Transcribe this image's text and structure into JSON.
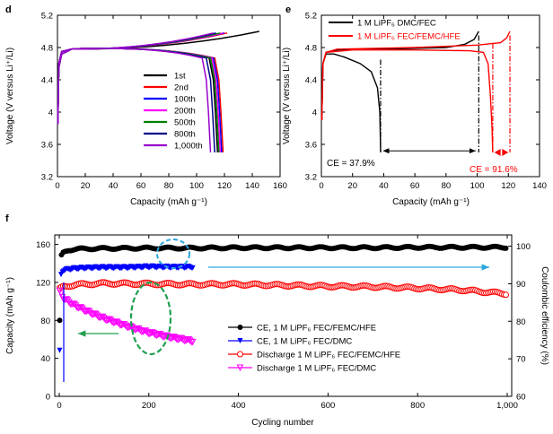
{
  "figure": {
    "panel_labels": {
      "d": "d",
      "e": "e",
      "f": "f"
    }
  },
  "colors": {
    "black": "#000000",
    "red": "#ff0000",
    "blue": "#0000ff",
    "magenta": "#ff00ff",
    "green": "#008000",
    "navy": "#00008b",
    "purple": "#9900cc",
    "cyan": "#29a6dc",
    "dashgreen": "#20a050"
  },
  "chart_data": [
    {
      "id": "d",
      "type": "line",
      "xlabel": "Capacity (mAh g⁻¹)",
      "ylabel": "Voltage (V versus Li⁺/Li)",
      "xlim": [
        0,
        160
      ],
      "ylim": [
        3.2,
        5.2
      ],
      "xticks": [
        0,
        20,
        40,
        60,
        80,
        100,
        120,
        140,
        160
      ],
      "yticks": [
        3.2,
        3.6,
        4.0,
        4.4,
        4.8,
        5.2
      ],
      "grid": false,
      "legend_position": "center-right",
      "series": [
        {
          "name": "1st",
          "color": "#000000",
          "charge_end": [
            145,
            5.0
          ],
          "discharge_end": [
            115,
            3.5
          ]
        },
        {
          "name": "2nd",
          "color": "#ff0000",
          "charge_end": [
            122,
            4.98
          ],
          "discharge_end": [
            119,
            3.5
          ]
        },
        {
          "name": "100th",
          "color": "#0000ff",
          "charge_end": [
            120,
            4.98
          ],
          "discharge_end": [
            118,
            3.5
          ]
        },
        {
          "name": "200th",
          "color": "#ff00ff",
          "charge_end": [
            119,
            4.98
          ],
          "discharge_end": [
            117,
            3.5
          ]
        },
        {
          "name": "500th",
          "color": "#008000",
          "charge_end": [
            117,
            4.98
          ],
          "discharge_end": [
            116,
            3.5
          ]
        },
        {
          "name": "800th",
          "color": "#00008b",
          "charge_end": [
            114,
            4.98
          ],
          "discharge_end": [
            113,
            3.5
          ]
        },
        {
          "name": "1,000th",
          "color": "#9900cc",
          "charge_end": [
            112,
            4.98
          ],
          "discharge_end": [
            110,
            3.5
          ]
        }
      ]
    },
    {
      "id": "e",
      "type": "line",
      "xlabel": "Capacity (mAh g⁻¹)",
      "ylabel": "Voltage (V versus Li⁺/Li)",
      "xlim": [
        0,
        140
      ],
      "ylim": [
        3.2,
        5.2
      ],
      "xticks": [
        0,
        20,
        40,
        60,
        80,
        100,
        120,
        140
      ],
      "yticks": [
        3.2,
        3.6,
        4.0,
        4.4,
        4.8,
        5.2
      ],
      "grid": false,
      "legend_position": "top",
      "series": [
        {
          "name": "1 M LiPF6 DMC/FEC",
          "color": "#000000",
          "charge_capacity": 101,
          "discharge_capacity": 38
        },
        {
          "name": "1 M LiPF6 FEC/FEMC/HFE",
          "color": "#ff0000",
          "charge_capacity": 121,
          "discharge_capacity": 110
        }
      ],
      "annotations": [
        {
          "text": "CE = 37.9%",
          "color": "#000000"
        },
        {
          "text": "CE = 91.6%",
          "color": "#ff0000"
        }
      ]
    },
    {
      "id": "f",
      "type": "scatter",
      "xlabel": "Cycling number",
      "ylabel": "Capacity (mAh g⁻¹)",
      "y2label": "Coulombic efficiency (%)",
      "xlim": [
        -10,
        1010
      ],
      "ylim": [
        0,
        170
      ],
      "y2lim": [
        60,
        103
      ],
      "xticks": [
        0,
        200,
        400,
        600,
        800,
        1000
      ],
      "yticks": [
        0,
        40,
        80,
        120,
        160
      ],
      "y2ticks": [
        60,
        70,
        80,
        90,
        100
      ],
      "grid": false,
      "legend_position": "center-right",
      "series": [
        {
          "name": "CE, 1 M LiPF6 FEC/FEMC/HFE",
          "axis": "right",
          "marker": "filled-circle",
          "color": "#000000",
          "x": [
            1,
            2,
            5,
            10,
            20,
            50,
            100,
            200,
            300,
            400,
            500,
            600,
            700,
            800,
            900,
            1000
          ],
          "y": [
            80,
            95,
            97.5,
            98.5,
            99.0,
            99.3,
            99.4,
            99.5,
            99.5,
            99.6,
            99.6,
            99.6,
            99.6,
            99.7,
            99.7,
            99.7
          ]
        },
        {
          "name": "CE, 1 M LiPF6 FEC/DMC",
          "axis": "right",
          "marker": "filled-triangle-down",
          "color": "#0000ff",
          "x": [
            1,
            2,
            5,
            10,
            30,
            60,
            100,
            150,
            200,
            250,
            300
          ],
          "y": [
            72,
            91,
            93,
            93.6,
            94,
            94.2,
            94.3,
            94.3,
            94.5,
            94.4,
            94.4
          ]
        },
        {
          "name": "Discharge 1 M LiPF6 FEC/FEMC/HFE",
          "axis": "left",
          "marker": "open-circle",
          "color": "#ff0000",
          "x": [
            1,
            10,
            50,
            100,
            200,
            300,
            400,
            500,
            600,
            700,
            800,
            900,
            1000
          ],
          "y": [
            113,
            116,
            118,
            119,
            118.5,
            118,
            118,
            117,
            116,
            115.5,
            114,
            112,
            108
          ]
        },
        {
          "name": "Discharge 1 M LiPF6 FEC/DMC",
          "axis": "left",
          "marker": "open-triangle-down",
          "color": "#ff00ff",
          "x": [
            1,
            10,
            30,
            60,
            100,
            150,
            200,
            250,
            300
          ],
          "y": [
            110,
            103,
            97,
            90,
            82,
            74,
            67,
            62,
            58
          ]
        }
      ]
    }
  ]
}
